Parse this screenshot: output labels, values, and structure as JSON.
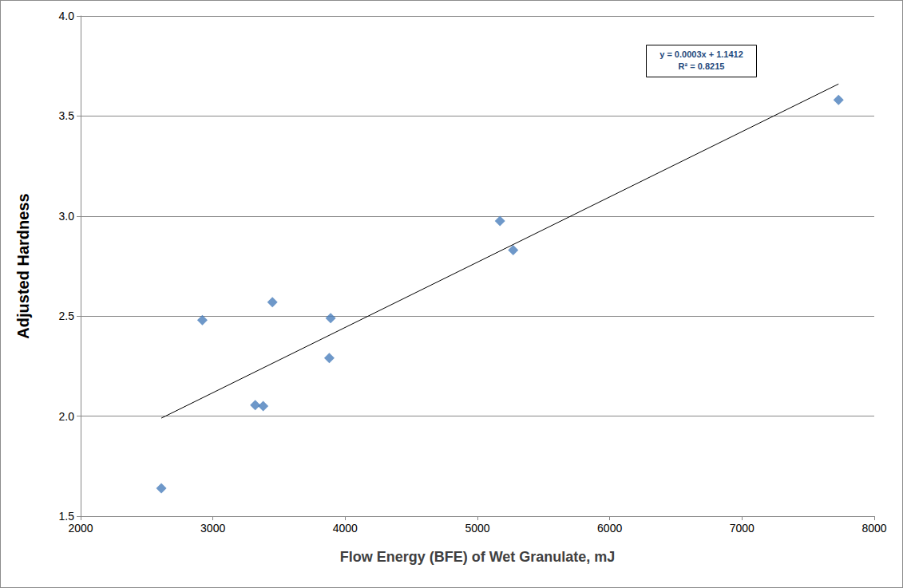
{
  "chart_data": {
    "type": "scatter",
    "x_label": "Flow Energy (BFE) of Wet Granulate, mJ",
    "y_label": "Adjusted Hardness",
    "xlim": [
      2000,
      8000
    ],
    "xticks": [
      2000,
      3000,
      4000,
      5000,
      6000,
      7000,
      8000
    ],
    "ylim": [
      1.5,
      4.0
    ],
    "yticks": [
      1.5,
      {
        "value": 2,
        "label": "2.0"
      },
      2.5,
      {
        "value": 3,
        "label": "3.0"
      },
      3.5,
      {
        "value": 4,
        "label": "4.0"
      }
    ],
    "grid": "y",
    "series": [
      {
        "type": "scatter",
        "color": "#4a7ebb",
        "marker": "diamond",
        "x": [
          2610,
          2920,
          3320,
          3380,
          3450,
          3880,
          3890,
          5170,
          5270,
          7730
        ],
        "values": [
          1.64,
          2.48,
          2.055,
          2.05,
          2.57,
          2.29,
          2.49,
          2.975,
          2.83,
          3.58
        ]
      },
      {
        "type": "line",
        "color": "#000000",
        "line_style": "solid",
        "x": [
          2610,
          7730
        ],
        "values": [
          1.99,
          3.66
        ]
      }
    ],
    "annotations": [
      "y = 0.0003x + 1.1412",
      "R² = 0.8215"
    ]
  }
}
